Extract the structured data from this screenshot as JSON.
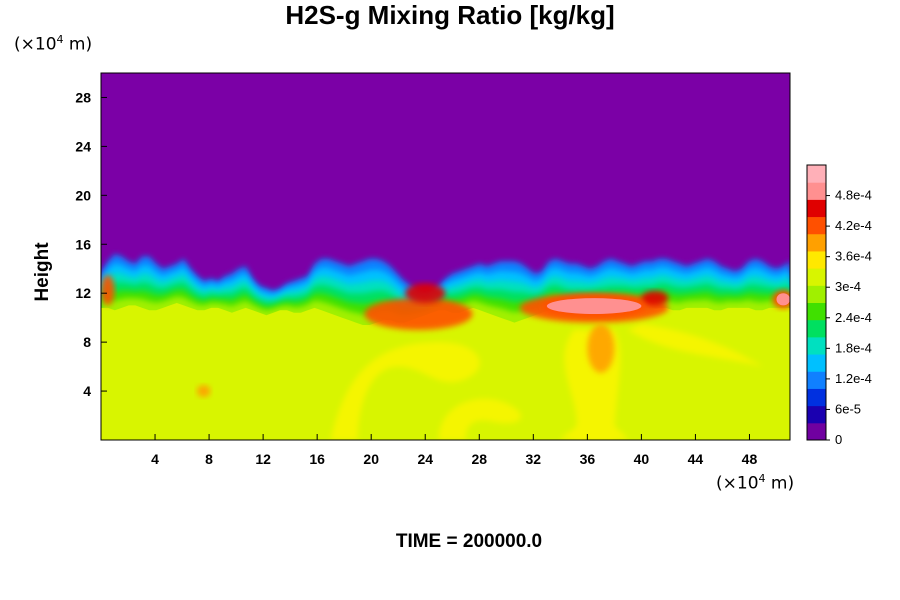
{
  "colors": {
    "background": "#7b00a6",
    "lower_field": "#d8f500",
    "yellow_patch": "#f5f500",
    "colormap": [
      "#7000a0",
      "#1a00b0",
      "#0030e0",
      "#1080ff",
      "#00c0ff",
      "#00e0c0",
      "#00e060",
      "#40e000",
      "#a0f000",
      "#d8f500",
      "#ffe800",
      "#ffa000",
      "#ff5000",
      "#e00000",
      "#ff9090",
      "#ffb0b8"
    ]
  },
  "chart_data": {
    "type": "heatmap",
    "title": "H2S-g Mixing Ratio [kg/kg]",
    "ylabel": "Height",
    "x_unit_label": {
      "prefix": "(×10",
      "exp": "4",
      "suffix": " m)"
    },
    "y_unit_label": {
      "prefix": "(×10",
      "exp": "4",
      "suffix": " m)"
    },
    "xlim": [
      0,
      51
    ],
    "ylim": [
      0,
      30
    ],
    "x_ticks": [
      4,
      8,
      12,
      16,
      20,
      24,
      28,
      32,
      36,
      40,
      44,
      48
    ],
    "y_ticks": [
      4,
      8,
      12,
      16,
      20,
      24,
      28
    ],
    "colorbar": {
      "range": [
        0,
        0.00054
      ],
      "tick_values": [
        0,
        6e-05,
        0.00012,
        0.00018,
        0.00024,
        0.0003,
        0.00036,
        0.00042,
        0.00048
      ],
      "tick_labels": [
        "0",
        "6e-5",
        "1.2e-4",
        "1.8e-4",
        "2.4e-4",
        "3e-4",
        "3.6e-4",
        "4.2e-4",
        "4.8e-4"
      ]
    },
    "layer_top_height": [
      13.8,
      14.6,
      15.2,
      15.0,
      14.6,
      14.4,
      15.0,
      15.0,
      14.4,
      14.0,
      14.2,
      14.4,
      14.8,
      14.0,
      13.4,
      13.0,
      13.2,
      13.0,
      13.4,
      13.6,
      14.0,
      14.2,
      13.2,
      12.6,
      12.4,
      12.2,
      12.4,
      12.8,
      13.0,
      13.2,
      13.4,
      14.4,
      14.8,
      14.8,
      14.6,
      14.4,
      14.2,
      14.4,
      14.6,
      14.8,
      14.8,
      14.6,
      14.2,
      13.6,
      13.0,
      12.6,
      12.2,
      12.0,
      12.2,
      12.6,
      13.2,
      13.6,
      13.8,
      14.0,
      14.2,
      14.4,
      14.2,
      14.4,
      14.6,
      14.6,
      14.6,
      14.4,
      14.0,
      13.6,
      13.8,
      14.6,
      14.8,
      14.6,
      14.4,
      14.4,
      14.2,
      14.0,
      14.2,
      14.6,
      14.8,
      14.6,
      14.4,
      14.2,
      14.4,
      14.6,
      14.6,
      14.8,
      14.8,
      14.6,
      14.4,
      14.2,
      14.4,
      14.6,
      14.8,
      14.6,
      14.2,
      14.0,
      13.8,
      14.0,
      14.6,
      14.8,
      14.6,
      14.2,
      14.0,
      14.2,
      14.6
    ],
    "mixed_base_height": [
      10.8,
      10.8,
      10.6,
      10.8,
      11.0,
      11.0,
      10.8,
      10.6,
      10.6,
      10.8,
      11.0,
      11.2,
      11.0,
      10.8,
      10.6,
      10.6,
      10.8,
      10.8,
      10.6,
      10.4,
      10.6,
      10.8,
      10.6,
      10.4,
      10.2,
      10.4,
      10.6,
      10.6,
      10.4,
      10.4,
      10.6,
      10.8,
      10.6,
      10.4,
      10.2,
      10.0,
      9.8,
      9.6,
      9.4,
      9.4,
      9.6,
      9.8,
      9.8,
      9.6,
      9.6,
      9.8,
      10.0,
      10.2,
      10.4,
      10.6,
      10.6,
      10.4,
      10.4,
      10.6,
      10.8,
      10.6,
      10.4,
      10.2,
      10.0,
      9.8,
      9.6,
      9.8,
      10.0,
      10.2,
      10.4,
      10.6,
      10.6,
      10.4,
      10.2,
      10.2,
      10.4,
      10.6,
      10.6,
      10.4,
      10.4,
      10.6,
      10.8,
      10.8,
      10.6,
      10.6,
      10.6,
      10.8,
      10.8,
      10.6,
      10.6,
      10.8,
      10.8,
      10.8,
      10.8,
      10.6,
      10.6,
      10.8,
      10.8,
      10.8,
      10.8,
      10.6,
      10.6,
      10.8,
      10.8,
      10.8,
      10.8
    ],
    "max_regions": [
      {
        "x": [
          33,
          40
        ],
        "y": [
          10.3,
          11.6
        ],
        "level": 14
      },
      {
        "x": [
          50,
          51
        ],
        "y": [
          11.0,
          12.0
        ],
        "level": 14
      }
    ],
    "high_regions": [
      {
        "x": [
          19.5,
          27.5
        ],
        "y": [
          9.0,
          11.6
        ],
        "level": 12
      },
      {
        "x": [
          22.5,
          25.5
        ],
        "y": [
          11.2,
          12.8
        ],
        "level": 13
      },
      {
        "x": [
          31,
          42
        ],
        "y": [
          9.6,
          12.0
        ],
        "level": 12
      },
      {
        "x": [
          40,
          42
        ],
        "y": [
          11.0,
          12.2
        ],
        "level": 13
      },
      {
        "x": [
          36,
          38
        ],
        "y": [
          5.5,
          9.5
        ],
        "level": 11
      },
      {
        "x": [
          0,
          1
        ],
        "y": [
          11.0,
          13.5
        ],
        "level": 12
      },
      {
        "x": [
          7.1,
          8.1
        ],
        "y": [
          3.5,
          4.5
        ],
        "level": 11
      }
    ]
  },
  "footer_text": "TIME = 200000.0"
}
